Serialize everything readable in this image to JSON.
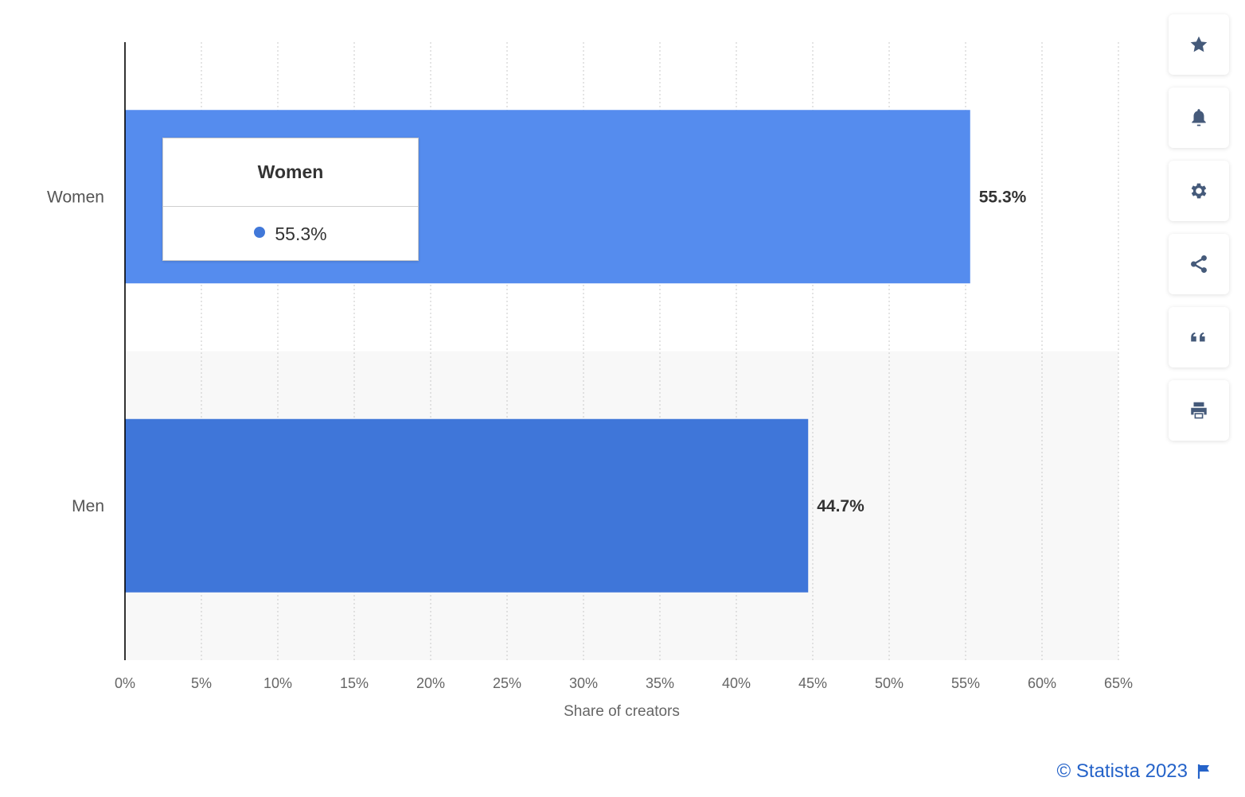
{
  "chart_data": {
    "type": "bar",
    "orientation": "horizontal",
    "categories": [
      "Women",
      "Men"
    ],
    "values": [
      55.3,
      44.7
    ],
    "data_labels": [
      "55.3%",
      "44.7%"
    ],
    "bar_colors": [
      "#558cee",
      "#3f76d9"
    ],
    "xlim": [
      0,
      65
    ],
    "ticks": [
      "0%",
      "5%",
      "10%",
      "15%",
      "20%",
      "25%",
      "30%",
      "35%",
      "40%",
      "45%",
      "50%",
      "55%",
      "60%",
      "65%"
    ],
    "xlabel": "Share of creators",
    "grid": true
  },
  "tooltip": {
    "title": "Women",
    "value": "55.3%",
    "dot_color": "#4178d9"
  },
  "sidebar": {
    "buttons": [
      {
        "icon": "star-icon"
      },
      {
        "icon": "bell-icon"
      },
      {
        "icon": "gear-icon"
      },
      {
        "icon": "share-icon"
      },
      {
        "icon": "quote-icon"
      },
      {
        "icon": "print-icon"
      }
    ],
    "icon_color": "#455a7a"
  },
  "footer": {
    "credit": "© Statista 2023"
  }
}
